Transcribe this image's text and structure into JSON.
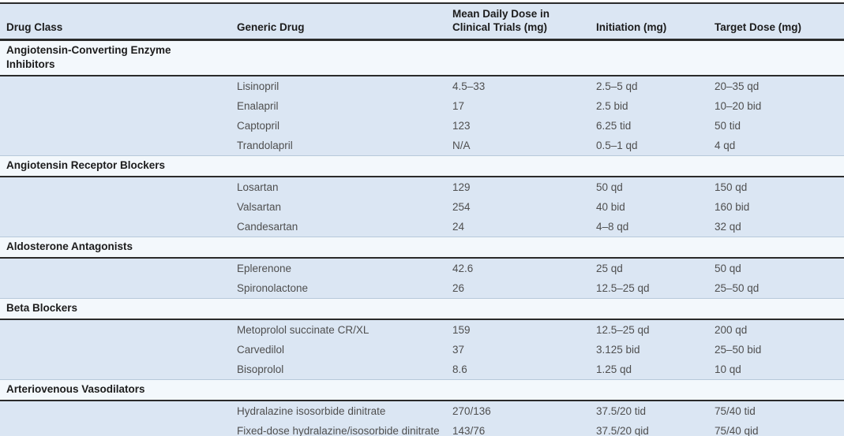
{
  "table": {
    "columns": [
      {
        "key": "drug_class",
        "label": "Drug Class"
      },
      {
        "key": "generic_drug",
        "label": "Generic Drug"
      },
      {
        "key": "mean_daily_dose",
        "label": "Mean Daily Dose in\nClinical Trials (mg)"
      },
      {
        "key": "initiation",
        "label": "Initiation (mg)"
      },
      {
        "key": "target_dose",
        "label": "Target Dose (mg)"
      }
    ],
    "sections": [
      {
        "drug_class": "Angiotensin-Converting Enzyme Inhibitors",
        "rows": [
          {
            "generic_drug": "Lisinopril",
            "mean_daily_dose": "4.5–33",
            "initiation": "2.5–5 qd",
            "target_dose": "20–35 qd"
          },
          {
            "generic_drug": "Enalapril",
            "mean_daily_dose": "17",
            "initiation": "2.5 bid",
            "target_dose": "10–20 bid"
          },
          {
            "generic_drug": "Captopril",
            "mean_daily_dose": "123",
            "initiation": "6.25 tid",
            "target_dose": "50 tid"
          },
          {
            "generic_drug": "Trandolapril",
            "mean_daily_dose": "N/A",
            "initiation": "0.5–1 qd",
            "target_dose": "4 qd"
          }
        ]
      },
      {
        "drug_class": "Angiotensin Receptor Blockers",
        "rows": [
          {
            "generic_drug": "Losartan",
            "mean_daily_dose": "129",
            "initiation": "50 qd",
            "target_dose": "150 qd"
          },
          {
            "generic_drug": "Valsartan",
            "mean_daily_dose": "254",
            "initiation": "40 bid",
            "target_dose": "160 bid"
          },
          {
            "generic_drug": "Candesartan",
            "mean_daily_dose": "24",
            "initiation": "4–8 qd",
            "target_dose": "32 qd"
          }
        ]
      },
      {
        "drug_class": "Aldosterone Antagonists",
        "rows": [
          {
            "generic_drug": "Eplerenone",
            "mean_daily_dose": "42.6",
            "initiation": "25 qd",
            "target_dose": "50 qd"
          },
          {
            "generic_drug": "Spironolactone",
            "mean_daily_dose": "26",
            "initiation": "12.5–25 qd",
            "target_dose": "25–50 qd"
          }
        ]
      },
      {
        "drug_class": "Beta Blockers",
        "rows": [
          {
            "generic_drug": "Metoprolol succinate CR/XL",
            "mean_daily_dose": "159",
            "initiation": "12.5–25 qd",
            "target_dose": "200 qd"
          },
          {
            "generic_drug": "Carvedilol",
            "mean_daily_dose": "37",
            "initiation": "3.125 bid",
            "target_dose": "25–50 bid"
          },
          {
            "generic_drug": "Bisoprolol",
            "mean_daily_dose": "8.6",
            "initiation": "1.25 qd",
            "target_dose": "10 qd"
          }
        ]
      },
      {
        "drug_class": "Arteriovenous Vasodilators",
        "rows": [
          {
            "generic_drug": "Hydralazine isosorbide dinitrate",
            "mean_daily_dose": "270/136",
            "initiation": "37.5/20 tid",
            "target_dose": "75/40 tid"
          },
          {
            "generic_drug": "Fixed-dose hydralazine/isosorbide dinitrate",
            "mean_daily_dose": "143/76",
            "initiation": "37.5/20 qid",
            "target_dose": "75/40 qid"
          }
        ]
      }
    ]
  },
  "colors": {
    "row_blue": "#dbe6f3",
    "class_row_bg": "#f3f8fc",
    "rule_dark": "#2a2a2a",
    "bottom_band": "#cfe1f1",
    "data_text": "#4f4f4f",
    "heading_text": "#1c1c1c"
  }
}
